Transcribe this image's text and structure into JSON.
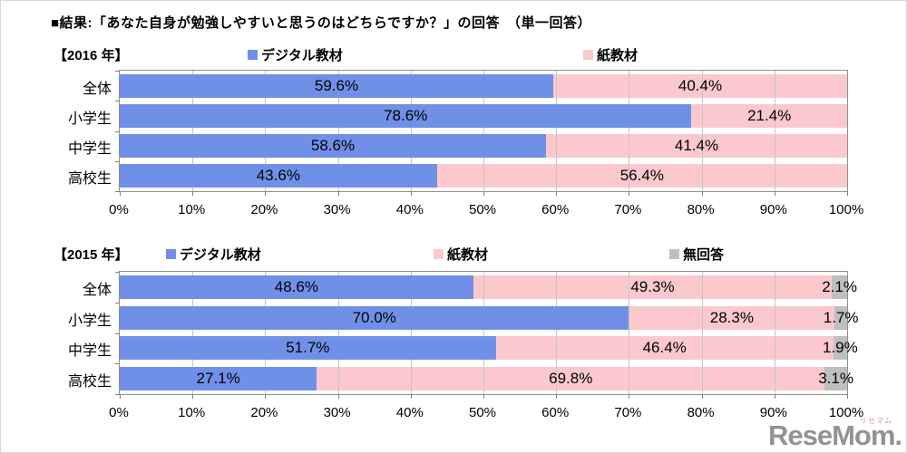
{
  "title": "■結果:「あなた自身が勉強しやすいと思うのはどちらですか？」の回答　（単一回答）",
  "watermark": {
    "text": "ReseMom.",
    "ruby": "リセマム"
  },
  "colors": {
    "digital": "#7090E8",
    "paper": "#FBC9CD",
    "no_answer": "#BFBFBF",
    "gridline": "#C6C6C6",
    "axis": "#808080"
  },
  "chart_data": [
    {
      "type": "bar",
      "stacked": true,
      "orientation": "horizontal",
      "title": "【2016 年】",
      "categories": [
        "全体",
        "小学生",
        "中学生",
        "高校生"
      ],
      "series": [
        {
          "name": "デジタル教材",
          "color": "#7090E8",
          "values": [
            59.6,
            78.6,
            58.6,
            43.6
          ]
        },
        {
          "name": "紙教材",
          "color": "#FBC9CD",
          "values": [
            40.4,
            21.4,
            41.4,
            56.4
          ]
        }
      ],
      "xlim": [
        0,
        100
      ],
      "xticks": [
        "0%",
        "10%",
        "20%",
        "30%",
        "40%",
        "50%",
        "60%",
        "70%",
        "80%",
        "90%",
        "100%"
      ],
      "grid": true,
      "legend_position": "top",
      "data_labels": "percent-one-decimal"
    },
    {
      "type": "bar",
      "stacked": true,
      "orientation": "horizontal",
      "title": "【2015 年】",
      "categories": [
        "全体",
        "小学生",
        "中学生",
        "高校生"
      ],
      "series": [
        {
          "name": "デジタル教材",
          "color": "#7090E8",
          "values": [
            48.6,
            70.0,
            51.7,
            27.1
          ]
        },
        {
          "name": "紙教材",
          "color": "#FBC9CD",
          "values": [
            49.3,
            28.3,
            46.4,
            69.8
          ]
        },
        {
          "name": "無回答",
          "color": "#BFBFBF",
          "values": [
            2.1,
            1.7,
            1.9,
            3.1
          ]
        }
      ],
      "xlim": [
        0,
        100
      ],
      "xticks": [
        "0%",
        "10%",
        "20%",
        "30%",
        "40%",
        "50%",
        "60%",
        "70%",
        "80%",
        "90%",
        "100%"
      ],
      "grid": true,
      "legend_position": "top",
      "data_labels": "percent-one-decimal"
    }
  ]
}
